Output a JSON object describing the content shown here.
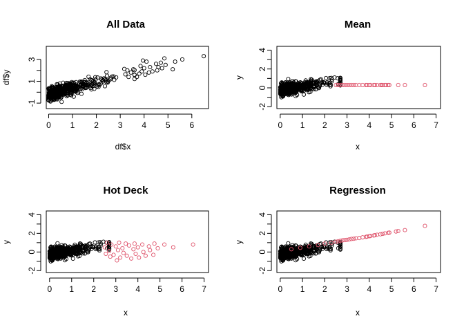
{
  "colors": {
    "observed": "#000000",
    "imputed": "#DF536B"
  },
  "chart_data": [
    {
      "id": "all",
      "type": "scatter",
      "title": "All Data",
      "xlabel": "df$x",
      "ylabel": "df$y",
      "xlim": [
        -0.1,
        6.7
      ],
      "ylim": [
        -1.5,
        4.2
      ],
      "xticks": [
        0,
        1,
        2,
        3,
        4,
        5,
        6
      ],
      "yticks": [
        -1,
        1,
        3
      ],
      "series": [
        {
          "role": "observed",
          "color": "#000000",
          "note": "dense cloud of ~700 points: x mostly 0–3, y roughly -1.3 to 2; spread increases with x",
          "points": [
            [
              3.7,
              1.4
            ],
            [
              3.8,
              1.7
            ],
            [
              3.85,
              2.4
            ],
            [
              3.9,
              1.9
            ],
            [
              3.95,
              2.9
            ],
            [
              4.0,
              2.2
            ],
            [
              4.05,
              1.6
            ],
            [
              4.1,
              2.8
            ],
            [
              4.2,
              1.8
            ],
            [
              4.25,
              2.3
            ],
            [
              4.35,
              1.9
            ],
            [
              4.5,
              2.6
            ],
            [
              4.55,
              2.0
            ],
            [
              4.6,
              2.3
            ],
            [
              4.7,
              2.7
            ],
            [
              4.75,
              2.2
            ],
            [
              4.85,
              3.1
            ],
            [
              4.9,
              2.5
            ],
            [
              5.2,
              2.1
            ],
            [
              5.3,
              2.8
            ],
            [
              5.6,
              3.0
            ],
            [
              6.5,
              3.3
            ],
            [
              3.3,
              2.0
            ],
            [
              3.35,
              1.4
            ],
            [
              3.45,
              1.8
            ],
            [
              3.55,
              2.1
            ],
            [
              3.6,
              1.6
            ]
          ]
        }
      ]
    },
    {
      "id": "mean",
      "type": "scatter",
      "title": "Mean",
      "xlabel": "x",
      "ylabel": "y",
      "xlim": [
        -0.15,
        7.2
      ],
      "ylim": [
        -2.2,
        4.4
      ],
      "xticks": [
        0,
        1,
        2,
        3,
        4,
        5,
        6,
        7
      ],
      "yticks": [
        -2,
        0,
        2,
        4
      ],
      "series": [
        {
          "role": "observed",
          "color": "#000000",
          "note": "observed points: x 0–2.7, y about -1.5 to 1.1"
        },
        {
          "role": "imputed",
          "color": "#DF536B",
          "note": "imputed y fixed at the mean, ~0.3",
          "points": [
            [
              2.5,
              0.3
            ],
            [
              2.6,
              0.3
            ],
            [
              2.7,
              0.3
            ],
            [
              2.8,
              0.3
            ],
            [
              2.9,
              0.3
            ],
            [
              3.0,
              0.3
            ],
            [
              3.1,
              0.3
            ],
            [
              3.2,
              0.3
            ],
            [
              3.3,
              0.3
            ],
            [
              3.4,
              0.3
            ],
            [
              3.55,
              0.3
            ],
            [
              3.7,
              0.3
            ],
            [
              3.85,
              0.3
            ],
            [
              3.9,
              0.3
            ],
            [
              4.0,
              0.3
            ],
            [
              4.05,
              0.3
            ],
            [
              4.2,
              0.3
            ],
            [
              4.25,
              0.3
            ],
            [
              4.35,
              0.3
            ],
            [
              4.5,
              0.3
            ],
            [
              4.55,
              0.3
            ],
            [
              4.6,
              0.3
            ],
            [
              4.7,
              0.3
            ],
            [
              4.75,
              0.3
            ],
            [
              4.85,
              0.3
            ],
            [
              4.9,
              0.3
            ],
            [
              5.3,
              0.3
            ],
            [
              5.6,
              0.3
            ],
            [
              6.5,
              0.3
            ]
          ]
        }
      ]
    },
    {
      "id": "hotdeck",
      "type": "scatter",
      "title": "Hot Deck",
      "xlabel": "x",
      "ylabel": "y",
      "xlim": [
        -0.15,
        7.2
      ],
      "ylim": [
        -2.2,
        4.4
      ],
      "xticks": [
        0,
        1,
        2,
        3,
        4,
        5,
        6,
        7
      ],
      "yticks": [
        -2,
        0,
        2,
        4
      ],
      "series": [
        {
          "role": "observed",
          "color": "#000000",
          "note": "observed points: x 0–2.7, y about -1.5 to 1.1"
        },
        {
          "role": "imputed",
          "color": "#DF536B",
          "note": "imputed y drawn from observed donors, -0.8 to 1.1",
          "points": [
            [
              2.5,
              0.5
            ],
            [
              2.55,
              -0.2
            ],
            [
              2.6,
              1.0
            ],
            [
              2.7,
              0.1
            ],
            [
              2.75,
              -0.5
            ],
            [
              2.8,
              0.8
            ],
            [
              2.9,
              -0.3
            ],
            [
              3.0,
              0.6
            ],
            [
              3.05,
              -0.9
            ],
            [
              3.1,
              0.2
            ],
            [
              3.15,
              1.0
            ],
            [
              3.2,
              -0.6
            ],
            [
              3.3,
              0.4
            ],
            [
              3.35,
              -0.1
            ],
            [
              3.45,
              0.9
            ],
            [
              3.5,
              -0.4
            ],
            [
              3.6,
              0.7
            ],
            [
              3.7,
              -0.7
            ],
            [
              3.8,
              0.3
            ],
            [
              3.85,
              0.9
            ],
            [
              3.9,
              -0.2
            ],
            [
              4.0,
              0.5
            ],
            [
              4.05,
              -0.6
            ],
            [
              4.2,
              0.8
            ],
            [
              4.25,
              0.0
            ],
            [
              4.35,
              -0.4
            ],
            [
              4.5,
              0.6
            ],
            [
              4.55,
              0.2
            ],
            [
              4.7,
              -0.3
            ],
            [
              4.75,
              0.9
            ],
            [
              4.9,
              0.4
            ],
            [
              5.2,
              0.8
            ],
            [
              5.6,
              0.5
            ],
            [
              6.5,
              0.8
            ]
          ]
        }
      ]
    },
    {
      "id": "regression",
      "type": "scatter",
      "title": "Regression",
      "xlabel": "x",
      "ylabel": "y",
      "xlim": [
        -0.15,
        7.2
      ],
      "ylim": [
        -2.2,
        4.4
      ],
      "xticks": [
        0,
        1,
        2,
        3,
        4,
        5,
        6,
        7
      ],
      "yticks": [
        -2,
        0,
        2,
        4
      ],
      "series": [
        {
          "role": "observed",
          "color": "#000000",
          "note": "observed points: x 0–2.7, y about -1.5 to 1.1"
        },
        {
          "role": "imputed",
          "color": "#DF536B",
          "note": "imputed y on fitted line, y ≈ 0.05 + 0.42x",
          "points": [
            [
              0.5,
              0.3
            ],
            [
              0.9,
              0.45
            ],
            [
              1.3,
              0.6
            ],
            [
              1.7,
              0.75
            ],
            [
              2.0,
              0.9
            ],
            [
              2.3,
              1.0
            ],
            [
              2.5,
              1.1
            ],
            [
              2.6,
              1.15
            ],
            [
              2.7,
              1.2
            ],
            [
              2.8,
              1.25
            ],
            [
              2.9,
              1.28
            ],
            [
              3.0,
              1.3
            ],
            [
              3.1,
              1.35
            ],
            [
              3.2,
              1.4
            ],
            [
              3.3,
              1.42
            ],
            [
              3.4,
              1.47
            ],
            [
              3.55,
              1.5
            ],
            [
              3.7,
              1.57
            ],
            [
              3.85,
              1.62
            ],
            [
              3.9,
              1.65
            ],
            [
              4.0,
              1.7
            ],
            [
              4.05,
              1.72
            ],
            [
              4.2,
              1.77
            ],
            [
              4.25,
              1.8
            ],
            [
              4.35,
              1.85
            ],
            [
              4.5,
              1.9
            ],
            [
              4.6,
              1.95
            ],
            [
              4.7,
              2.0
            ],
            [
              4.85,
              2.05
            ],
            [
              4.9,
              2.08
            ],
            [
              5.2,
              2.2
            ],
            [
              5.3,
              2.25
            ],
            [
              5.6,
              2.35
            ],
            [
              6.5,
              2.8
            ]
          ]
        }
      ]
    }
  ]
}
